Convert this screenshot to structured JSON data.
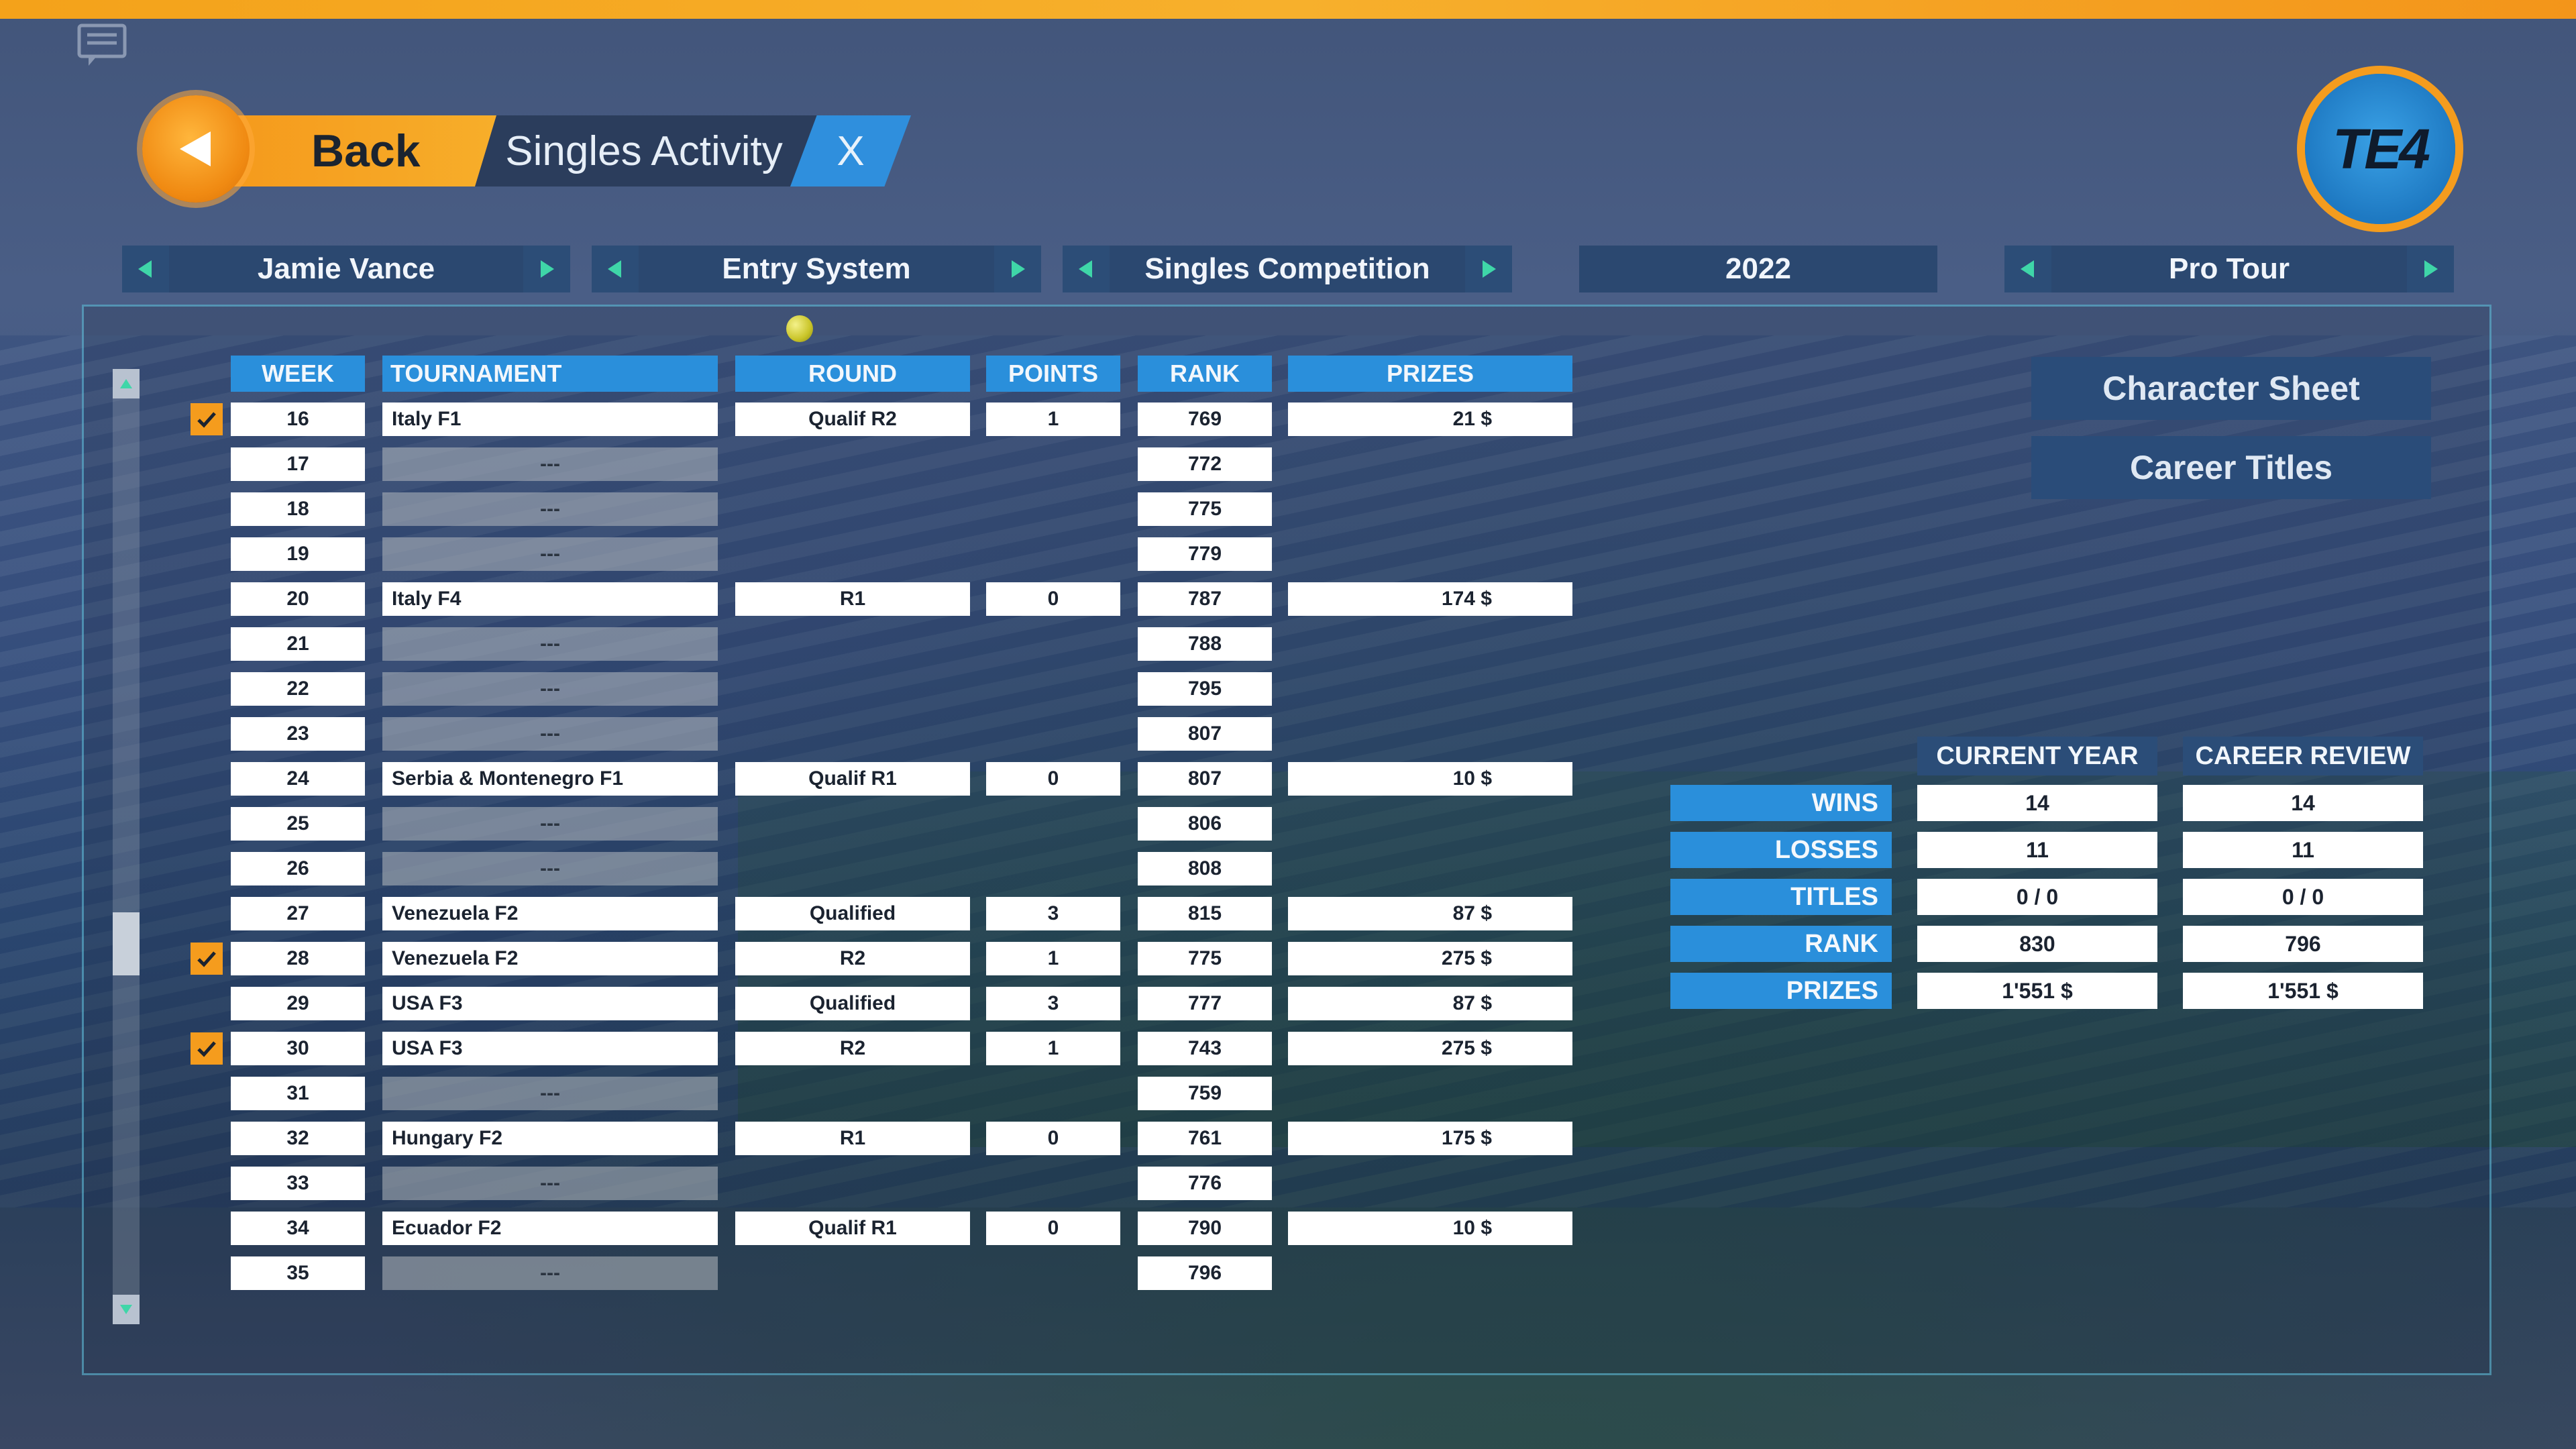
{
  "header": {
    "back_label": "Back",
    "title": "Singles Activity",
    "close_label": "X",
    "logo_text": "TE4"
  },
  "selectors": [
    {
      "label": "Jamie Vance"
    },
    {
      "label": "Entry System"
    },
    {
      "label": "Singles Competition"
    },
    {
      "label": "2022"
    },
    {
      "label": "Pro Tour"
    }
  ],
  "table": {
    "headers": {
      "week": "WEEK",
      "tournament": "TOURNAMENT",
      "round": "ROUND",
      "points": "POINTS",
      "rank": "RANK",
      "prizes": "PRIZES"
    },
    "rows": [
      {
        "checked": true,
        "week": "16",
        "tournament": "Italy F1",
        "round": "Qualif R2",
        "points": "1",
        "rank": "769",
        "prize": "21 $"
      },
      {
        "checked": false,
        "week": "17",
        "tournament": "---",
        "round": "",
        "points": "",
        "rank": "772",
        "prize": ""
      },
      {
        "checked": false,
        "week": "18",
        "tournament": "---",
        "round": "",
        "points": "",
        "rank": "775",
        "prize": ""
      },
      {
        "checked": false,
        "week": "19",
        "tournament": "---",
        "round": "",
        "points": "",
        "rank": "779",
        "prize": ""
      },
      {
        "checked": false,
        "week": "20",
        "tournament": "Italy F4",
        "round": "R1",
        "points": "0",
        "rank": "787",
        "prize": "174 $"
      },
      {
        "checked": false,
        "week": "21",
        "tournament": "---",
        "round": "",
        "points": "",
        "rank": "788",
        "prize": ""
      },
      {
        "checked": false,
        "week": "22",
        "tournament": "---",
        "round": "",
        "points": "",
        "rank": "795",
        "prize": ""
      },
      {
        "checked": false,
        "week": "23",
        "tournament": "---",
        "round": "",
        "points": "",
        "rank": "807",
        "prize": ""
      },
      {
        "checked": false,
        "week": "24",
        "tournament": "Serbia & Montenegro F1",
        "round": "Qualif R1",
        "points": "0",
        "rank": "807",
        "prize": "10 $"
      },
      {
        "checked": false,
        "week": "25",
        "tournament": "---",
        "round": "",
        "points": "",
        "rank": "806",
        "prize": ""
      },
      {
        "checked": false,
        "week": "26",
        "tournament": "---",
        "round": "",
        "points": "",
        "rank": "808",
        "prize": ""
      },
      {
        "checked": false,
        "week": "27",
        "tournament": "Venezuela F2",
        "round": "Qualified",
        "points": "3",
        "rank": "815",
        "prize": "87 $"
      },
      {
        "checked": true,
        "week": "28",
        "tournament": "Venezuela F2",
        "round": "R2",
        "points": "1",
        "rank": "775",
        "prize": "275 $"
      },
      {
        "checked": false,
        "week": "29",
        "tournament": "USA F3",
        "round": "Qualified",
        "points": "3",
        "rank": "777",
        "prize": "87 $"
      },
      {
        "checked": true,
        "week": "30",
        "tournament": "USA F3",
        "round": "R2",
        "points": "1",
        "rank": "743",
        "prize": "275 $"
      },
      {
        "checked": false,
        "week": "31",
        "tournament": "---",
        "round": "",
        "points": "",
        "rank": "759",
        "prize": ""
      },
      {
        "checked": false,
        "week": "32",
        "tournament": "Hungary F2",
        "round": "R1",
        "points": "0",
        "rank": "761",
        "prize": "175 $"
      },
      {
        "checked": false,
        "week": "33",
        "tournament": "---",
        "round": "",
        "points": "",
        "rank": "776",
        "prize": ""
      },
      {
        "checked": false,
        "week": "34",
        "tournament": "Ecuador F2",
        "round": "Qualif R1",
        "points": "0",
        "rank": "790",
        "prize": "10 $"
      },
      {
        "checked": false,
        "week": "35",
        "tournament": "---",
        "round": "",
        "points": "",
        "rank": "796",
        "prize": ""
      }
    ]
  },
  "side_buttons": {
    "character_sheet": "Character Sheet",
    "career_titles": "Career Titles"
  },
  "stats": {
    "headers": {
      "current_year": "CURRENT YEAR",
      "career_review": "CAREER REVIEW"
    },
    "rows": [
      {
        "label": "WINS",
        "current": "14",
        "career": "14"
      },
      {
        "label": "LOSSES",
        "current": "11",
        "career": "11"
      },
      {
        "label": "TITLES",
        "current": "0 / 0",
        "career": "0 / 0"
      },
      {
        "label": "RANK",
        "current": "830",
        "career": "796"
      },
      {
        "label": "PRIZES",
        "current": "1'551 $",
        "career": "1'551 $"
      }
    ]
  },
  "colors": {
    "accent_orange": "#f59c1d",
    "accent_blue": "#2a8fdb",
    "arrow_green": "#3fd6a8"
  }
}
